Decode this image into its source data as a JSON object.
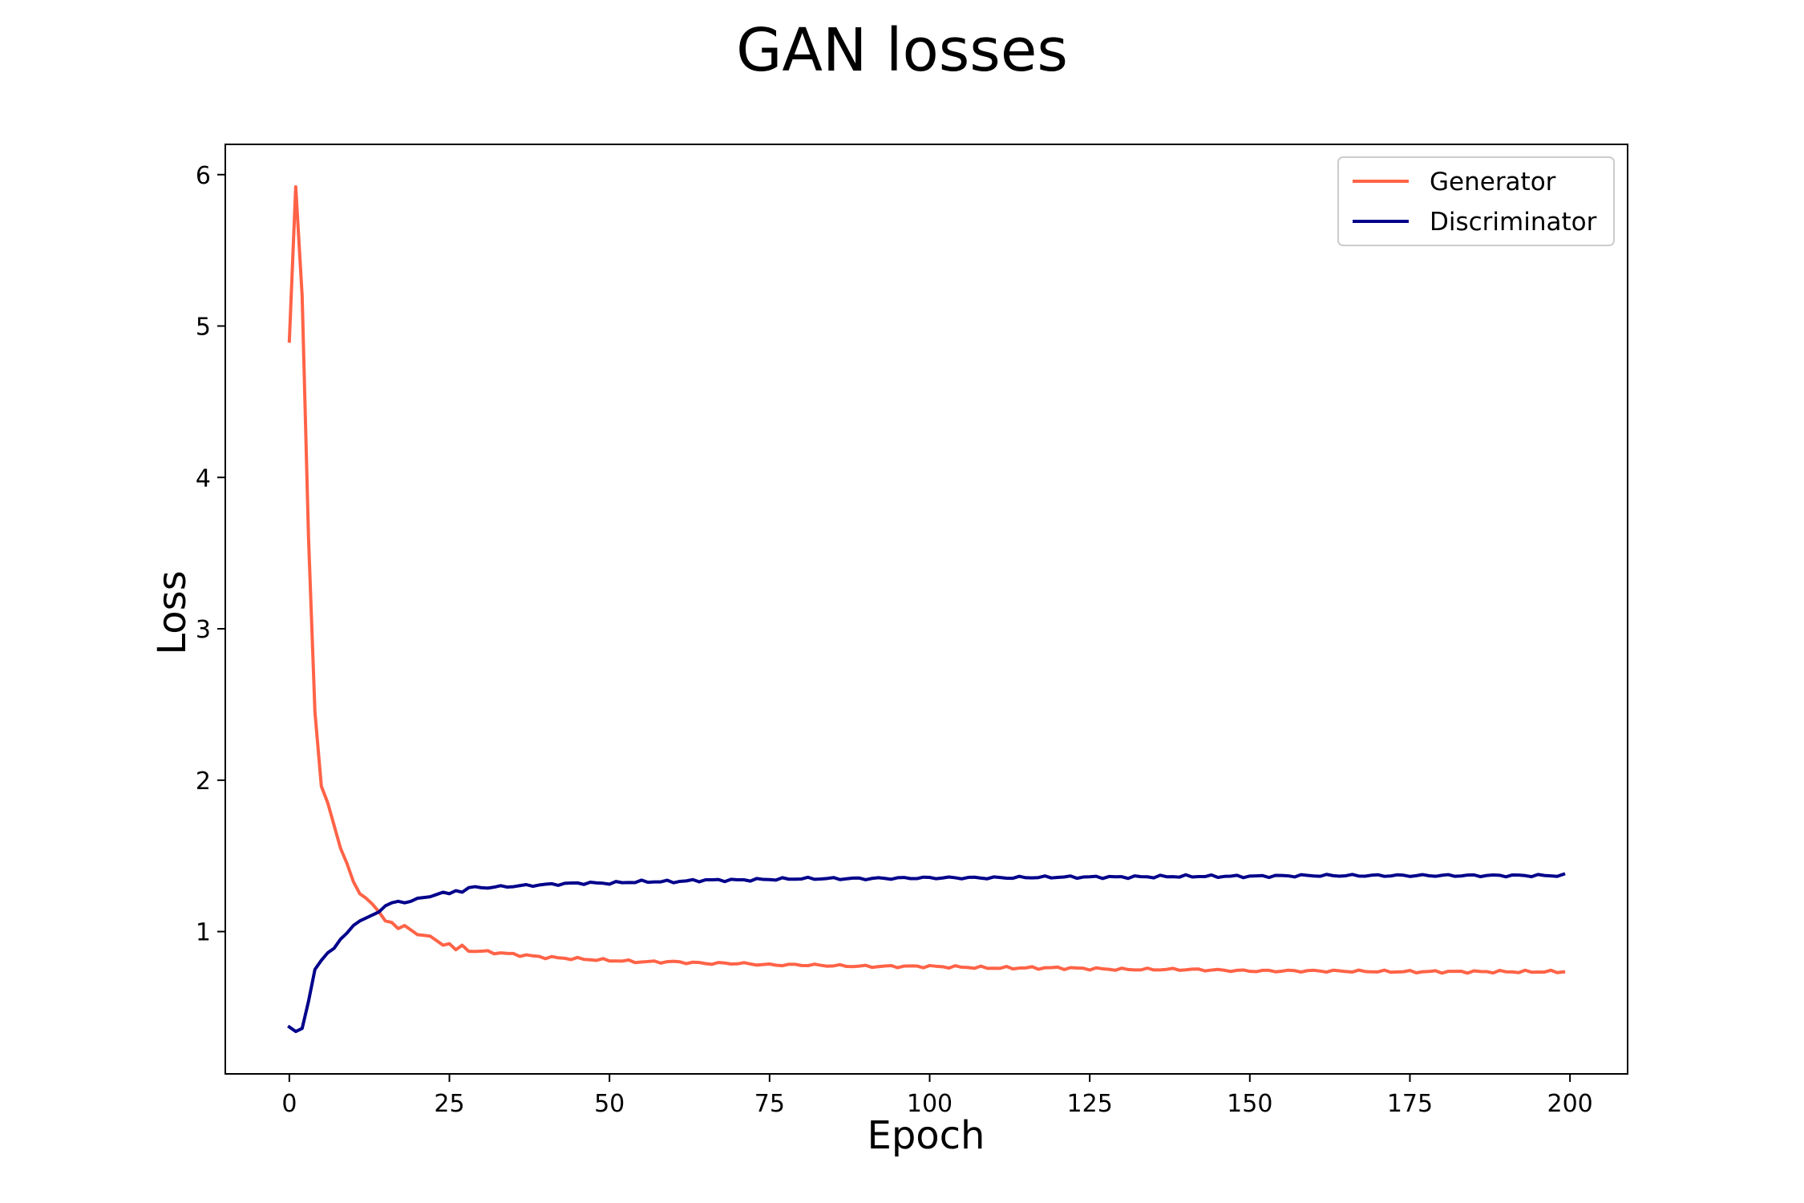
{
  "chart_data": {
    "type": "line",
    "title": "GAN losses",
    "xlabel": "Epoch",
    "ylabel": "Loss",
    "xlim": [
      -10,
      209
    ],
    "ylim": [
      0.06,
      6.2
    ],
    "xticks": [
      0,
      25,
      50,
      75,
      100,
      125,
      150,
      175,
      200
    ],
    "yticks": [
      1,
      2,
      3,
      4,
      5,
      6
    ],
    "grid": false,
    "legend_position": "top-right",
    "series": [
      {
        "name": "Generator",
        "color": "#ff6347",
        "keypoints": [
          [
            0,
            4.9
          ],
          [
            1,
            5.92
          ],
          [
            2,
            5.2
          ],
          [
            3,
            3.6
          ],
          [
            4,
            2.45
          ],
          [
            5,
            1.96
          ],
          [
            6,
            1.85
          ],
          [
            7,
            1.7
          ],
          [
            8,
            1.55
          ],
          [
            9,
            1.45
          ],
          [
            10,
            1.33
          ],
          [
            11,
            1.25
          ],
          [
            12,
            1.22
          ],
          [
            13,
            1.18
          ],
          [
            14,
            1.13
          ],
          [
            15,
            1.07
          ],
          [
            16,
            1.06
          ],
          [
            17,
            1.02
          ],
          [
            18,
            1.04
          ],
          [
            19,
            1.01
          ],
          [
            20,
            0.98
          ],
          [
            22,
            0.97
          ],
          [
            24,
            0.91
          ],
          [
            25,
            0.92
          ],
          [
            26,
            0.88
          ],
          [
            27,
            0.91
          ],
          [
            28,
            0.87
          ],
          [
            30,
            0.87
          ],
          [
            35,
            0.85
          ],
          [
            40,
            0.83
          ],
          [
            45,
            0.82
          ],
          [
            50,
            0.81
          ],
          [
            55,
            0.8
          ],
          [
            60,
            0.8
          ],
          [
            65,
            0.79
          ],
          [
            70,
            0.79
          ],
          [
            75,
            0.78
          ],
          [
            80,
            0.78
          ],
          [
            90,
            0.77
          ],
          [
            100,
            0.77
          ],
          [
            110,
            0.76
          ],
          [
            120,
            0.76
          ],
          [
            130,
            0.75
          ],
          [
            140,
            0.75
          ],
          [
            150,
            0.74
          ],
          [
            160,
            0.74
          ],
          [
            175,
            0.735
          ],
          [
            185,
            0.735
          ],
          [
            199,
            0.735
          ]
        ]
      },
      {
        "name": "Discriminator",
        "color": "#00008b",
        "keypoints": [
          [
            0,
            0.37
          ],
          [
            1,
            0.34
          ],
          [
            2,
            0.36
          ],
          [
            3,
            0.54
          ],
          [
            4,
            0.75
          ],
          [
            5,
            0.81
          ],
          [
            6,
            0.86
          ],
          [
            7,
            0.89
          ],
          [
            8,
            0.95
          ],
          [
            9,
            0.99
          ],
          [
            10,
            1.04
          ],
          [
            11,
            1.07
          ],
          [
            12,
            1.09
          ],
          [
            13,
            1.11
          ],
          [
            14,
            1.13
          ],
          [
            15,
            1.17
          ],
          [
            16,
            1.19
          ],
          [
            17,
            1.2
          ],
          [
            18,
            1.19
          ],
          [
            19,
            1.2
          ],
          [
            20,
            1.22
          ],
          [
            22,
            1.23
          ],
          [
            24,
            1.26
          ],
          [
            25,
            1.25
          ],
          [
            26,
            1.27
          ],
          [
            27,
            1.26
          ],
          [
            28,
            1.29
          ],
          [
            30,
            1.29
          ],
          [
            35,
            1.3
          ],
          [
            40,
            1.31
          ],
          [
            45,
            1.32
          ],
          [
            50,
            1.32
          ],
          [
            55,
            1.33
          ],
          [
            60,
            1.33
          ],
          [
            65,
            1.34
          ],
          [
            70,
            1.34
          ],
          [
            75,
            1.345
          ],
          [
            80,
            1.35
          ],
          [
            90,
            1.35
          ],
          [
            100,
            1.355
          ],
          [
            110,
            1.355
          ],
          [
            120,
            1.36
          ],
          [
            130,
            1.36
          ],
          [
            140,
            1.365
          ],
          [
            150,
            1.365
          ],
          [
            160,
            1.37
          ],
          [
            175,
            1.37
          ],
          [
            185,
            1.37
          ],
          [
            199,
            1.37
          ]
        ]
      }
    ]
  }
}
